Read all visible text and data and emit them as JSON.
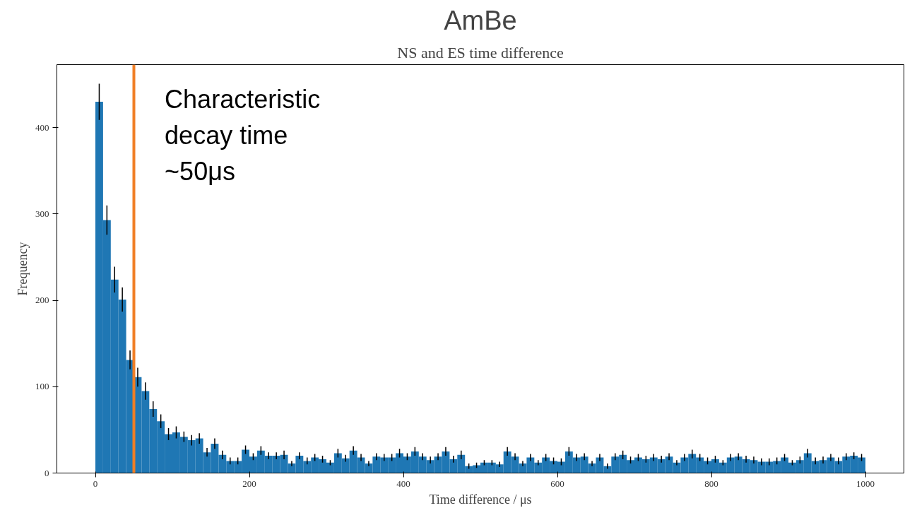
{
  "chart_data": {
    "type": "histogram",
    "title": "AmBe",
    "subtitle": "NS and ES time difference",
    "xlabel": "Time difference / μs",
    "ylabel": "Frequency",
    "bins": [
      0,
      10,
      20,
      30,
      40,
      50,
      60,
      70,
      80,
      90,
      100,
      110,
      120,
      130,
      140,
      150,
      160,
      170,
      180,
      190,
      200,
      210,
      220,
      230,
      240,
      250,
      260,
      270,
      280,
      290,
      300,
      310,
      320,
      330,
      340,
      350,
      360,
      370,
      380,
      390,
      400,
      410,
      420,
      430,
      440,
      450,
      460,
      470,
      480,
      490,
      500,
      510,
      520,
      530,
      540,
      550,
      560,
      570,
      580,
      590,
      600,
      610,
      620,
      630,
      640,
      650,
      660,
      670,
      680,
      690,
      700,
      710,
      720,
      730,
      740,
      750,
      760,
      770,
      780,
      790,
      800,
      810,
      820,
      830,
      840,
      850,
      860,
      870,
      880,
      890,
      900,
      910,
      920,
      930,
      940,
      950,
      960,
      970,
      980,
      990,
      1000
    ],
    "values": [
      430,
      293,
      224,
      201,
      131,
      111,
      95,
      74,
      60,
      45,
      47,
      42,
      38,
      40,
      24,
      34,
      21,
      14,
      14,
      27,
      19,
      26,
      20,
      20,
      21,
      11,
      20,
      14,
      18,
      16,
      12,
      23,
      17,
      26,
      18,
      11,
      19,
      18,
      18,
      23,
      19,
      25,
      19,
      15,
      19,
      25,
      16,
      21,
      8,
      9,
      12,
      12,
      10,
      25,
      19,
      11,
      18,
      12,
      18,
      14,
      13,
      25,
      18,
      19,
      11,
      18,
      8,
      19,
      21,
      15,
      18,
      16,
      18,
      16,
      19,
      12,
      18,
      22,
      18,
      14,
      16,
      12,
      18,
      19,
      16,
      15,
      13,
      13,
      14,
      18,
      12,
      15,
      23,
      14,
      15,
      18,
      14,
      19,
      20,
      18
    ],
    "errors": [
      21,
      17,
      15,
      14,
      11,
      11,
      10,
      9,
      8,
      7,
      7,
      6,
      6,
      6,
      5,
      6,
      5,
      4,
      4,
      5,
      4,
      5,
      4,
      4,
      5,
      3,
      4,
      4,
      4,
      4,
      3,
      5,
      4,
      5,
      4,
      3,
      4,
      4,
      4,
      5,
      4,
      5,
      4,
      4,
      4,
      5,
      4,
      5,
      3,
      3,
      3,
      3,
      3,
      5,
      4,
      3,
      4,
      3,
      4,
      4,
      4,
      5,
      4,
      4,
      3,
      4,
      3,
      4,
      5,
      4,
      4,
      4,
      4,
      4,
      4,
      3,
      4,
      5,
      4,
      4,
      4,
      3,
      4,
      4,
      4,
      4,
      4,
      4,
      4,
      4,
      3,
      4,
      5,
      4,
      4,
      4,
      4,
      4,
      4,
      4
    ],
    "color": "#1f77b4",
    "xlim": [
      -50,
      1050
    ],
    "ylim": [
      0,
      473
    ],
    "xticks": [
      0,
      200,
      400,
      600,
      800,
      1000
    ],
    "yticks": [
      0,
      100,
      200,
      300,
      400
    ],
    "grid": false,
    "ref_lines": [
      {
        "axis": "x",
        "value": 50,
        "color": "#f07f26"
      }
    ],
    "annotations": [
      "Characteristic\ndecay time\n~50μs"
    ]
  }
}
